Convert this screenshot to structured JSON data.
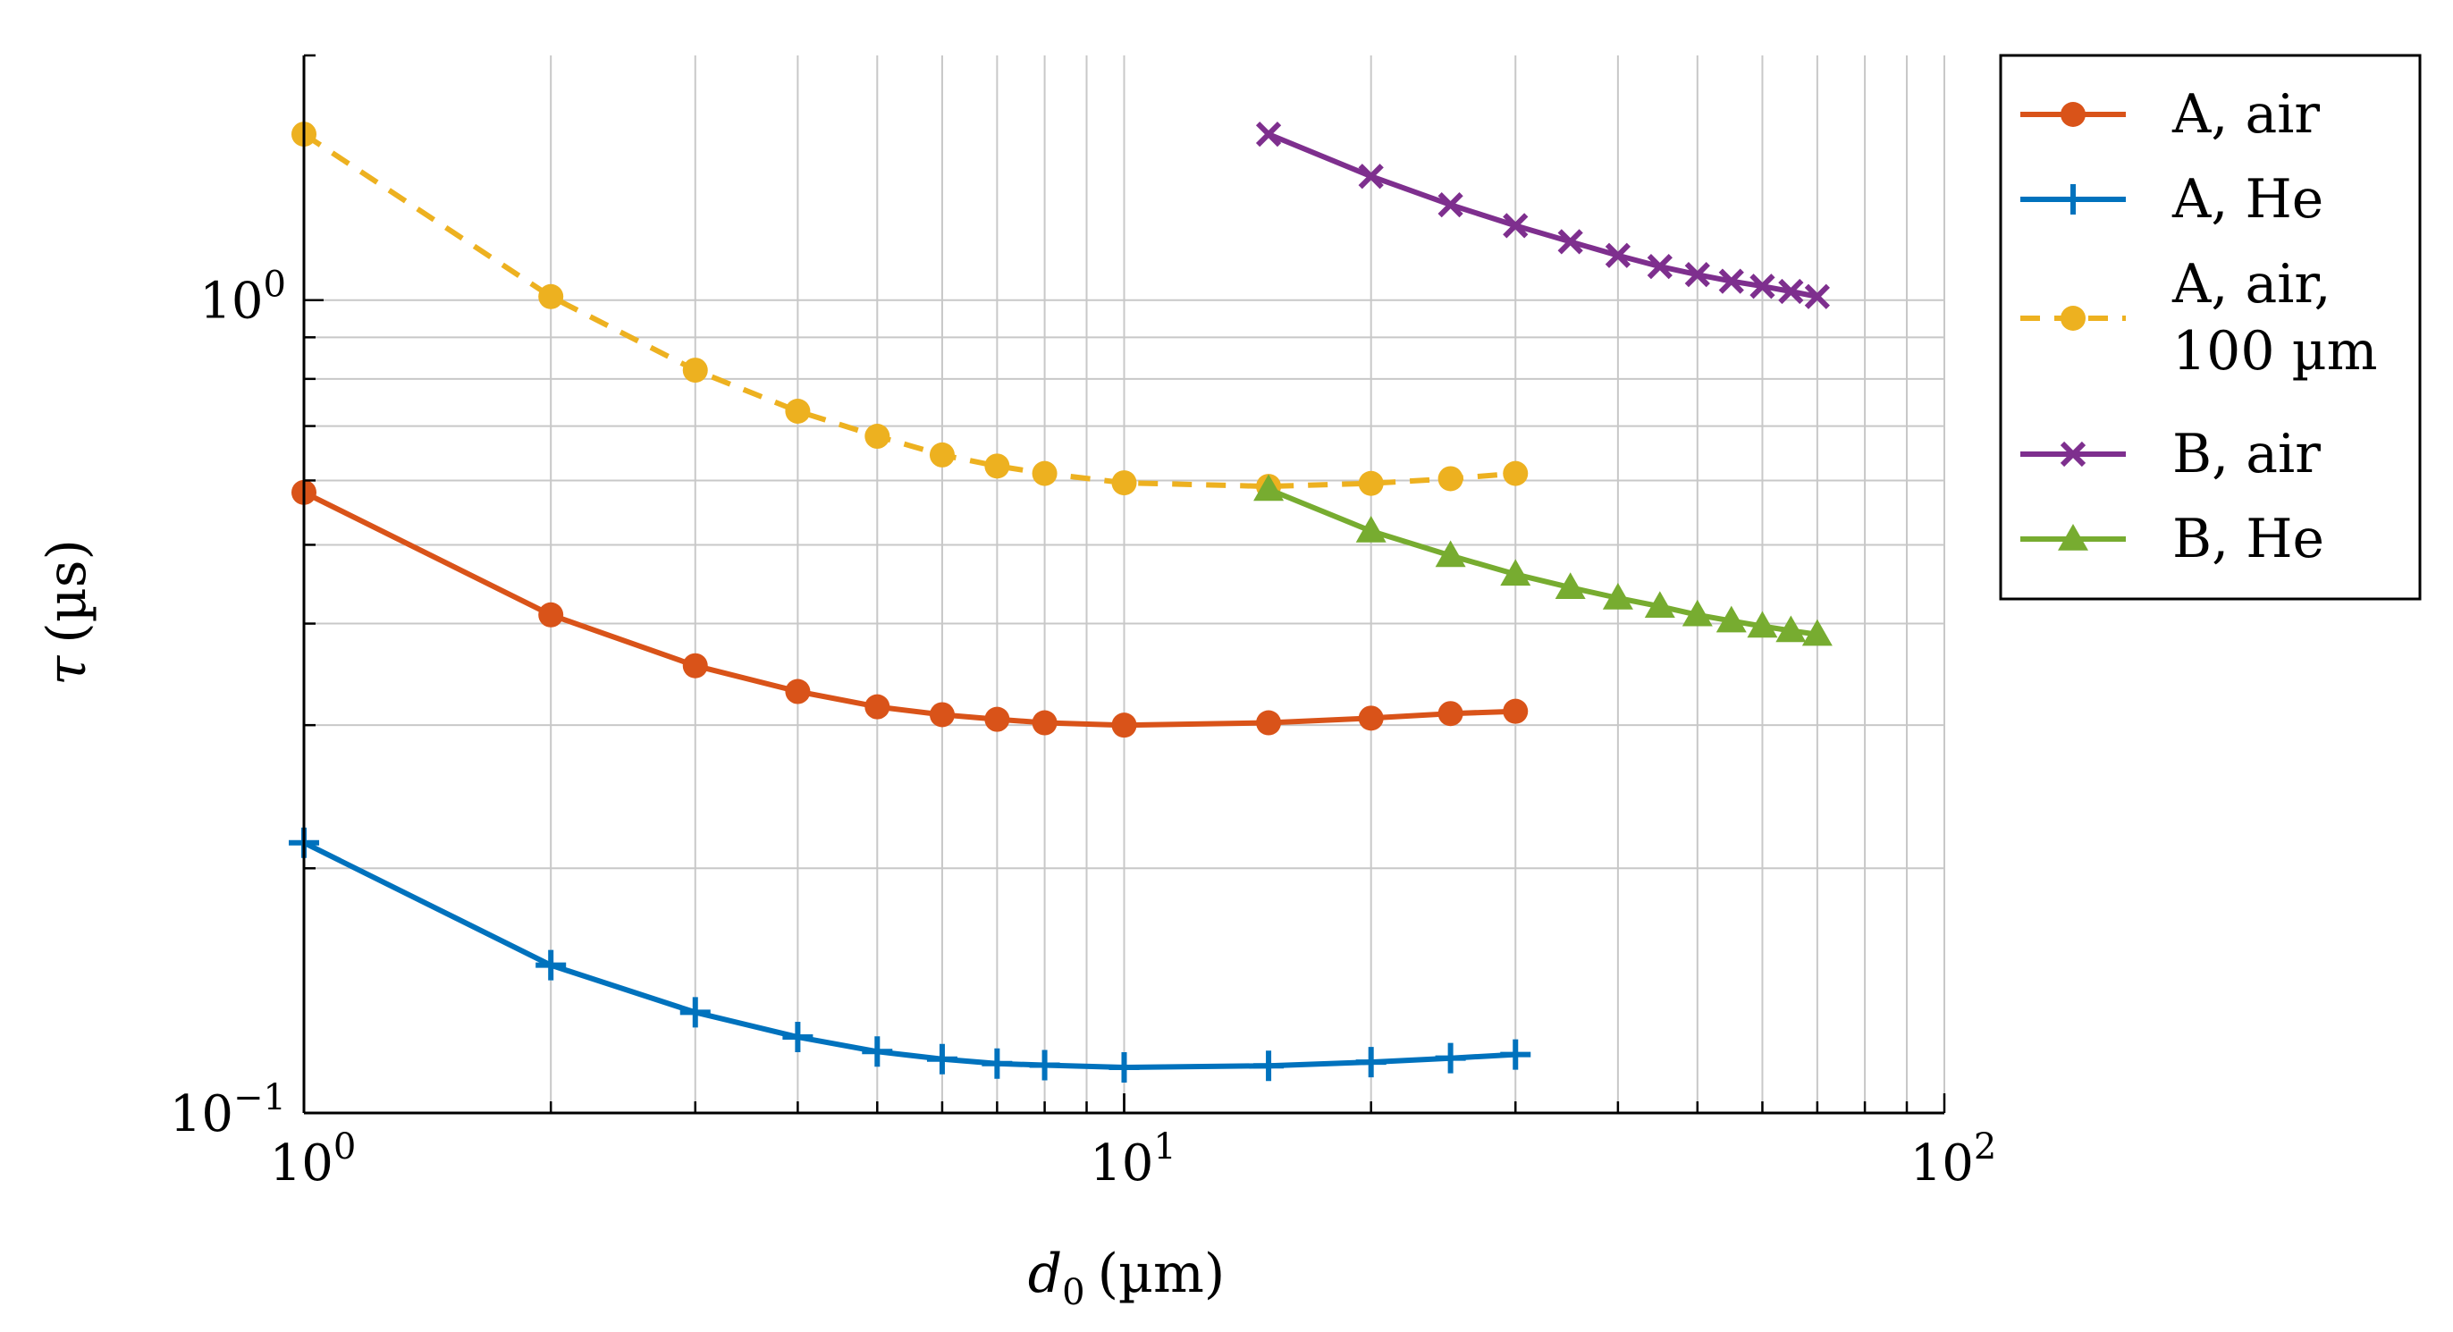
{
  "chart_data": {
    "type": "line",
    "x_scale": "log",
    "y_scale": "log",
    "xlabel_symbol": "d",
    "xlabel_subscript": "0",
    "xlabel_unit": "(µm)",
    "ylabel_symbol": "τ",
    "ylabel_unit": "(µs)",
    "xlim": [
      1,
      100
    ],
    "ylim": [
      0.1,
      2.0
    ],
    "grid": true,
    "legend_position": "outside-top-right",
    "x_ticks": [
      {
        "value": 1,
        "base": "10",
        "exp": "0"
      },
      {
        "value": 10,
        "base": "10",
        "exp": "1"
      },
      {
        "value": 100,
        "base": "10",
        "exp": "2"
      }
    ],
    "y_ticks": [
      {
        "value": 0.1,
        "base": "10",
        "exp": "−1"
      },
      {
        "value": 1,
        "base": "10",
        "exp": "0"
      }
    ],
    "series": [
      {
        "key": "a-air",
        "name": "A, air",
        "name_line2": "",
        "color": "#D95319",
        "marker": "circle",
        "dashed": false,
        "x": [
          1,
          2,
          3,
          4,
          5,
          6,
          7,
          8,
          10,
          15,
          20,
          25,
          30
        ],
        "y": [
          0.58,
          0.41,
          0.355,
          0.33,
          0.316,
          0.309,
          0.305,
          0.302,
          0.3,
          0.302,
          0.306,
          0.31,
          0.312
        ]
      },
      {
        "key": "a-he",
        "name": "A, He",
        "name_line2": "",
        "color": "#0072BD",
        "marker": "plus",
        "dashed": false,
        "x": [
          1,
          2,
          3,
          4,
          5,
          6,
          7,
          8,
          10,
          15,
          20,
          25,
          30
        ],
        "y": [
          0.215,
          0.152,
          0.133,
          0.124,
          0.119,
          0.1165,
          0.115,
          0.1145,
          0.1138,
          0.1143,
          0.1155,
          0.1168,
          0.118
        ]
      },
      {
        "key": "a-air-100",
        "name": "A, air,",
        "name_line2": "100 µm",
        "color": "#EDB120",
        "marker": "circle",
        "dashed": true,
        "x": [
          1,
          2,
          3,
          4,
          5,
          6,
          7,
          8,
          10,
          15,
          20,
          25,
          30
        ],
        "y": [
          1.6,
          1.01,
          0.82,
          0.73,
          0.68,
          0.645,
          0.625,
          0.612,
          0.596,
          0.59,
          0.595,
          0.603,
          0.612
        ]
      },
      {
        "key": "b-air",
        "name": "B, air",
        "name_line2": "",
        "color": "#7E2F8E",
        "marker": "x",
        "dashed": false,
        "x": [
          15,
          20,
          25,
          30,
          35,
          40,
          45,
          50,
          55,
          60,
          65,
          70
        ],
        "y": [
          1.6,
          1.42,
          1.31,
          1.235,
          1.18,
          1.135,
          1.1,
          1.075,
          1.055,
          1.04,
          1.025,
          1.01
        ]
      },
      {
        "key": "b-he",
        "name": "B, He",
        "name_line2": "",
        "color": "#77AC30",
        "marker": "triangle",
        "dashed": false,
        "x": [
          15,
          20,
          25,
          30,
          35,
          40,
          45,
          50,
          55,
          60,
          65,
          70
        ],
        "y": [
          0.585,
          0.52,
          0.485,
          0.46,
          0.443,
          0.43,
          0.42,
          0.41,
          0.403,
          0.397,
          0.392,
          0.388
        ]
      }
    ]
  }
}
